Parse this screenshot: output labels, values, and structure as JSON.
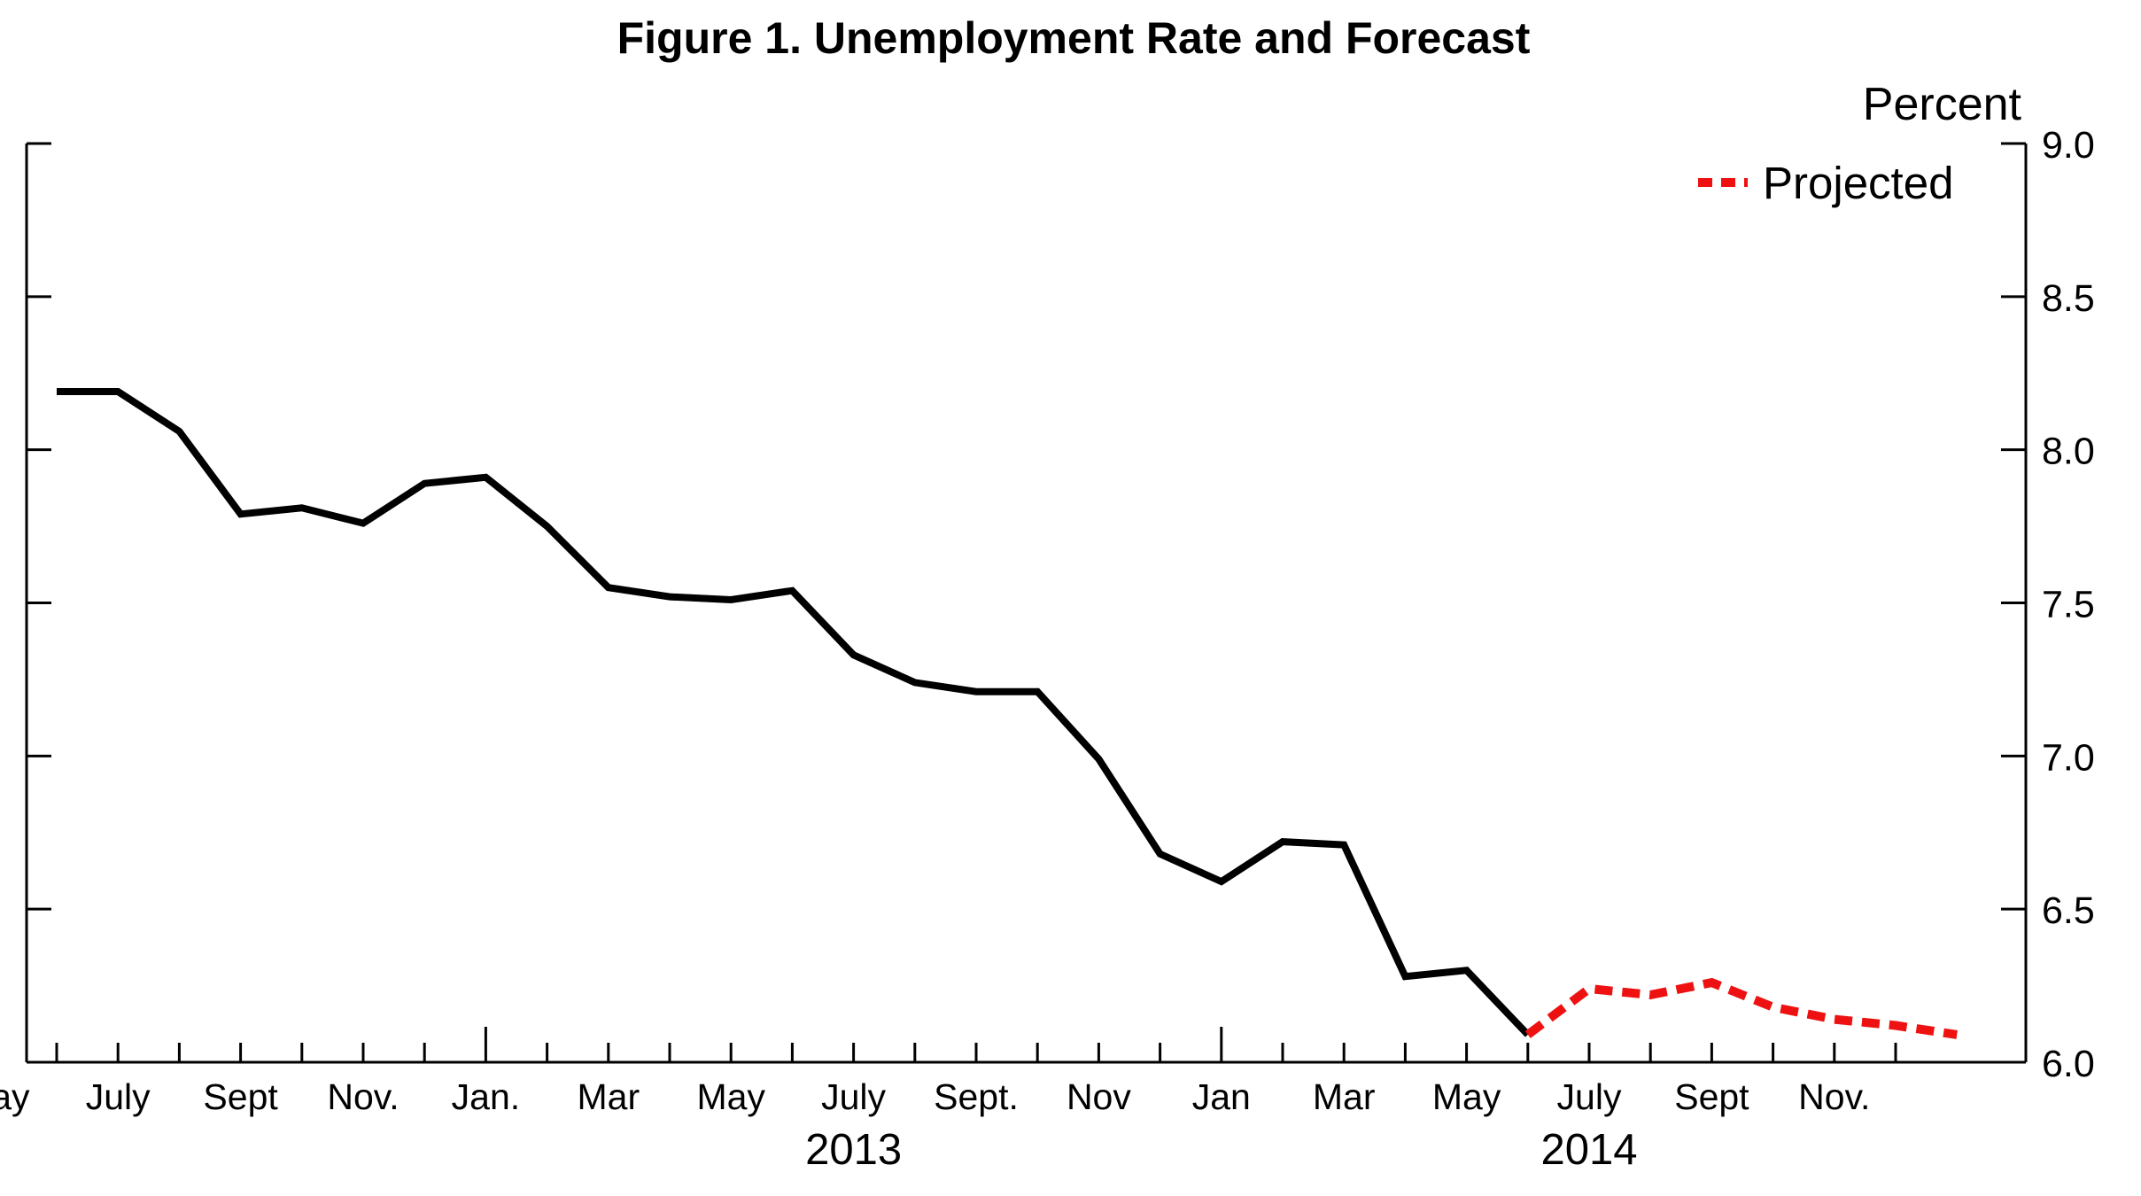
{
  "chart_data": {
    "type": "line",
    "title": "Figure 1. Unemployment Rate and Forecast",
    "ylabel": "Percent",
    "ylim": [
      6.0,
      9.0
    ],
    "yticks": [
      "6.0",
      "6.5",
      "7.0",
      "7.5",
      "8.0",
      "8.5",
      "9.0"
    ],
    "y_axis_side": "right",
    "grid": false,
    "legend": {
      "placement": "top-right",
      "entries": [
        "Projected"
      ]
    },
    "x_month_labels": [
      "May",
      "July",
      "Sept",
      "Nov.",
      "Jan.",
      "Mar",
      "May",
      "July",
      "Sept.",
      "Nov",
      "Jan",
      "Mar",
      "May",
      "July",
      "Sept",
      "Nov."
    ],
    "x_year_labels": [
      "2013",
      "2014"
    ],
    "colors": {
      "actual": "#000000",
      "projected": "#ee1111"
    },
    "series": [
      {
        "key": "actual",
        "style": "solid",
        "x_start_month": "2012-06",
        "values": [
          8.19,
          8.19,
          8.06,
          7.79,
          7.81,
          7.76,
          7.89,
          7.91,
          7.75,
          7.55,
          7.52,
          7.51,
          7.54,
          7.33,
          7.24,
          7.21,
          7.21,
          6.99,
          6.68,
          6.59,
          6.72,
          6.71,
          6.28,
          6.3,
          6.09
        ]
      },
      {
        "key": "projected",
        "name": "Projected",
        "style": "dashed",
        "x_start_month": "2014-06",
        "values": [
          6.09,
          6.24,
          6.22,
          6.26,
          6.18,
          6.14,
          6.12,
          6.09
        ]
      }
    ]
  }
}
